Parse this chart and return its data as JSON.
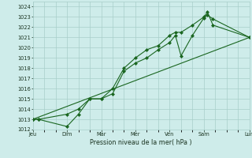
{
  "bg_color": "#ceecea",
  "grid_color": "#a8ceca",
  "line_color": "#1a6620",
  "marker_color": "#1a6620",
  "x_tick_labels": [
    "Jeu",
    "Dim",
    "Mar",
    "Mer",
    "Ven",
    "Sam",
    "Lun"
  ],
  "x_tick_positions": [
    0,
    3,
    6,
    9,
    12,
    15,
    19
  ],
  "xlabel": "Pression niveau de la mer( hPa )",
  "ylim": [
    1012,
    1024.5
  ],
  "yticks": [
    1012,
    1013,
    1014,
    1015,
    1016,
    1017,
    1018,
    1019,
    1020,
    1021,
    1022,
    1023,
    1024
  ],
  "line1_x": [
    0,
    0.5,
    3,
    4,
    5,
    6,
    7,
    8,
    9,
    10,
    11,
    12,
    12.5,
    13,
    14,
    15,
    15.3,
    15.8,
    19
  ],
  "line1_y": [
    1013.0,
    1013.0,
    1012.3,
    1013.5,
    1015.0,
    1015.0,
    1015.5,
    1017.7,
    1018.5,
    1019.0,
    1019.8,
    1020.5,
    1021.2,
    1019.2,
    1021.2,
    1022.9,
    1023.5,
    1022.2,
    1021.0
  ],
  "line2_x": [
    0,
    0.5,
    3,
    4,
    5,
    6,
    7,
    8,
    9,
    10,
    11,
    12,
    12.5,
    13,
    14,
    15,
    15.3,
    15.8,
    19
  ],
  "line2_y": [
    1013.0,
    1013.0,
    1013.5,
    1014.0,
    1015.0,
    1015.0,
    1016.0,
    1018.0,
    1019.0,
    1019.8,
    1020.2,
    1021.2,
    1021.5,
    1021.5,
    1022.2,
    1023.0,
    1023.2,
    1022.8,
    1021.0
  ],
  "line3_x": [
    0,
    19
  ],
  "line3_y": [
    1013.0,
    1021.0
  ],
  "figsize": [
    3.2,
    2.0
  ],
  "dpi": 100
}
